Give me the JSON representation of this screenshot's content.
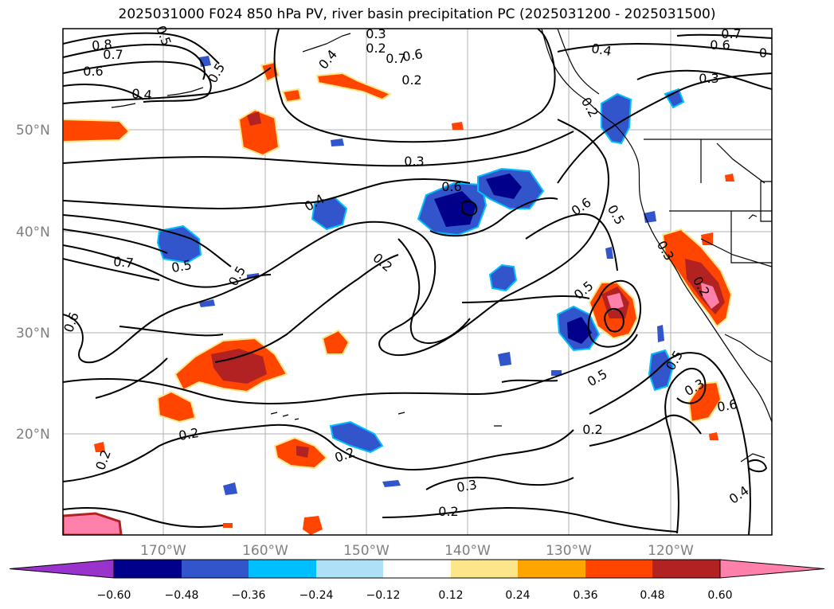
{
  "title": "2025031000 F024 850 hPa PV, river basin precipitation PC (2025031200 - 2025031500)",
  "latitude_labels": [
    "50°N",
    "40°N",
    "30°N",
    "20°N"
  ],
  "longitude_labels": [
    "170°W",
    "160°W",
    "150°W",
    "140°W",
    "130°W",
    "120°W"
  ],
  "colorbar": {
    "colors": [
      "#9933cc",
      "#00008b",
      "#3355cc",
      "#00bfff",
      "#aee0f8",
      "#ffffff",
      "#fde68a",
      "#ffa500",
      "#ff4500",
      "#b22222",
      "#ff80aa"
    ],
    "tick_labels": [
      "−0.60",
      "−0.48",
      "−0.36",
      "−0.24",
      "−0.12",
      "0.12",
      "0.24",
      "0.36",
      "0.48",
      "0.60"
    ]
  },
  "contour_labels": [
    "0.8",
    "0.7",
    "0.6",
    "0.5",
    "0.4",
    "0.3",
    "0.2",
    "0.7",
    "0.6",
    "0.5",
    "0.4",
    "0.2",
    "0.2",
    "0.7",
    "0.6",
    "0.4",
    "0.3",
    "0.6",
    "0.3",
    "0.4",
    "0.6",
    "0.5",
    "0.5",
    "0.7",
    "0.5",
    "0.2",
    "0.6",
    "0.5",
    "0.5",
    "0.3",
    "0.2",
    "0.5",
    "0.6",
    "0.3",
    "0.2",
    "0.2",
    "0.2",
    "0.3",
    "0.2",
    "0.2",
    "0.4",
    "0"
  ],
  "colors": {
    "contour": "#000000",
    "gridline": "#b0b0b0",
    "coast": "#000000"
  }
}
